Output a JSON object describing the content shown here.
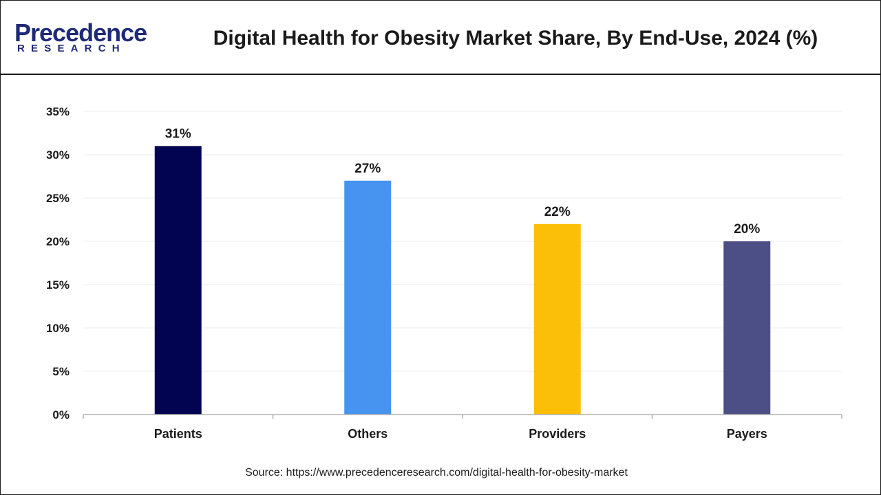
{
  "header": {
    "logo_name": "Precedence",
    "logo_sub": "RESEARCH",
    "title": "Digital Health for Obesity Market Share, By End-Use, 2024 (%)"
  },
  "colors": {
    "logo": "#1e2a78",
    "axis": "#b0b0b0",
    "grid": "#eeeeee",
    "text": "#1a1a1a"
  },
  "chart_data": {
    "type": "bar",
    "title": "Digital Health for Obesity Market Share, By End-Use, 2024 (%)",
    "categories": [
      "Patients",
      "Others",
      "Providers",
      "Payers"
    ],
    "values": [
      31,
      27,
      22,
      20
    ],
    "value_labels": [
      "31%",
      "27%",
      "22%",
      "20%"
    ],
    "bar_colors": [
      "#020452",
      "#4694ef",
      "#fcbf07",
      "#4c4f86"
    ],
    "y_ticks": [
      0,
      5,
      10,
      15,
      20,
      25,
      30,
      35
    ],
    "y_tick_labels": [
      "0%",
      "5%",
      "10%",
      "15%",
      "20%",
      "25%",
      "30%",
      "35%"
    ],
    "ylim": [
      0,
      35
    ],
    "xlabel": "",
    "ylabel": "",
    "grid": true,
    "legend": "none"
  },
  "source": "Source: https://www.precedenceresearch.com/digital-health-for-obesity-market"
}
